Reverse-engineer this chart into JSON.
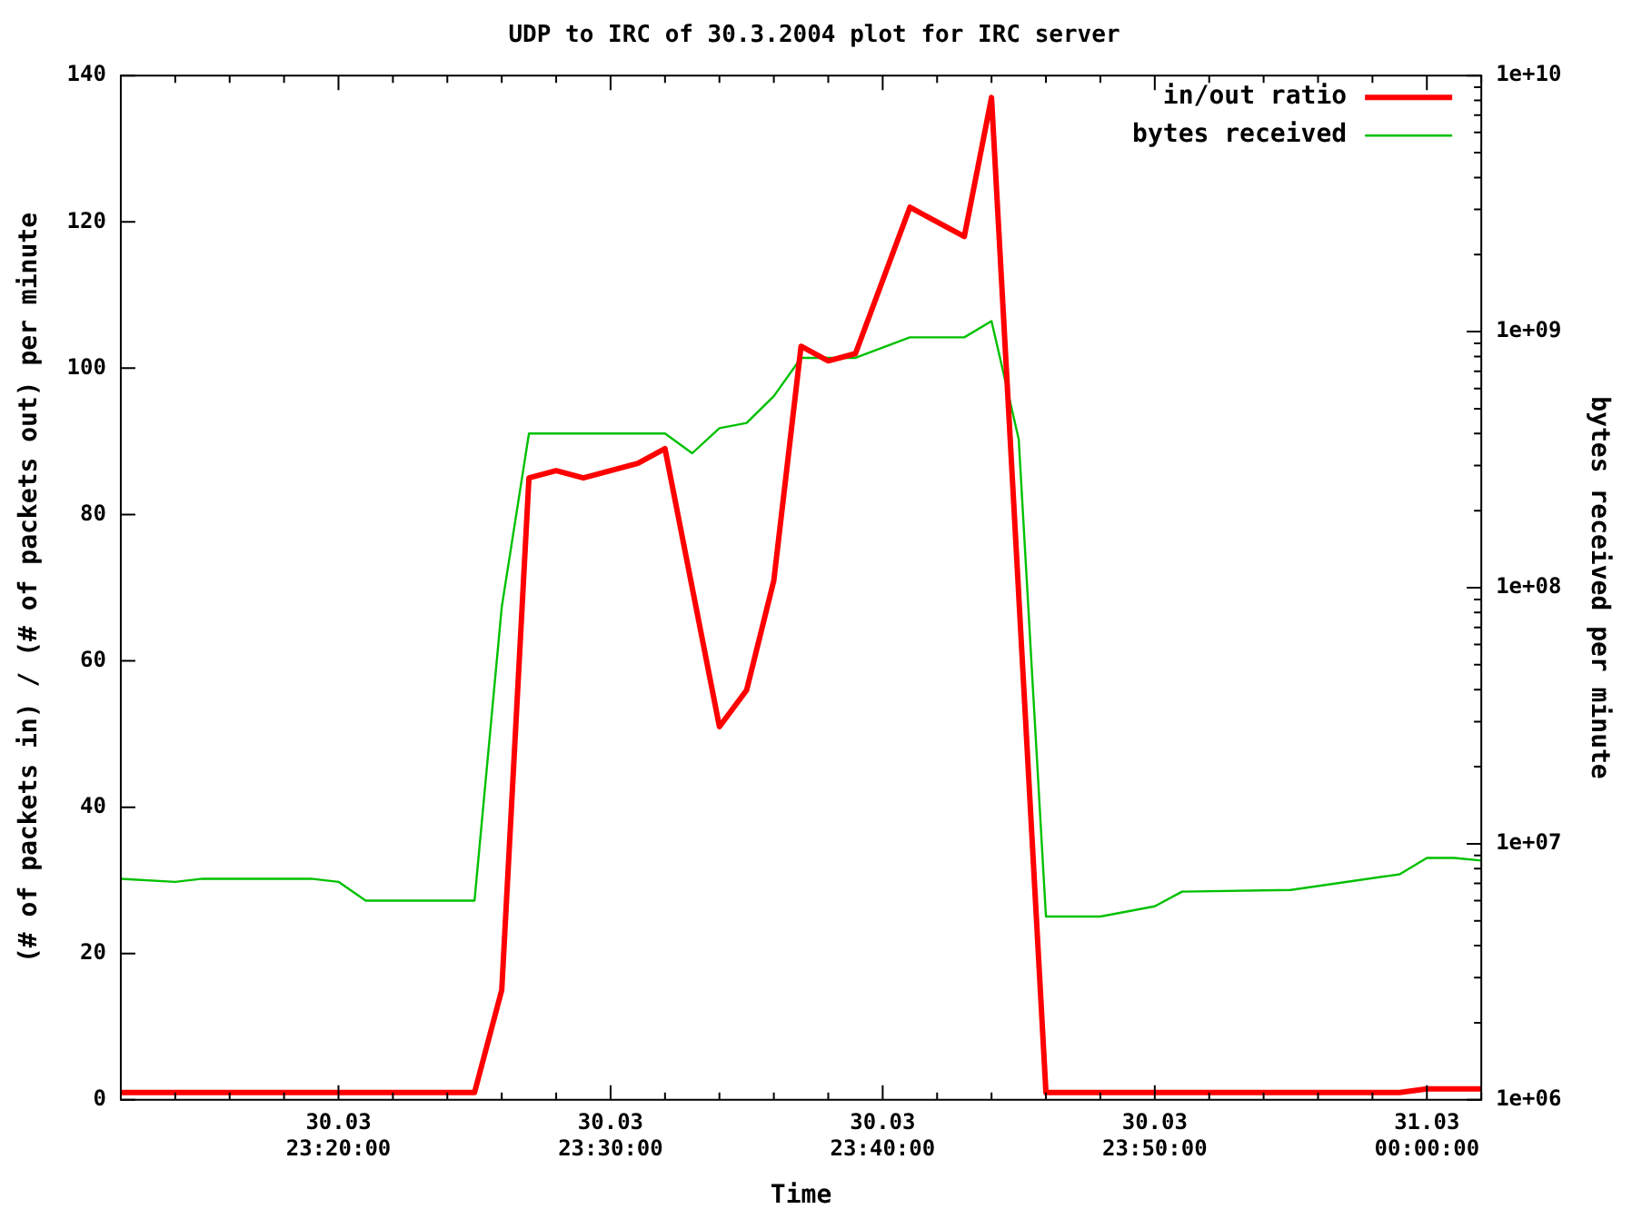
{
  "chart_data": {
    "type": "line",
    "title": "UDP to IRC of 30.3.2004 plot for IRC server",
    "xlabel": "Time",
    "ylabel": "(# of packets in) / (# of packets out) per minute",
    "y2label": "bytes received per minute",
    "log": "y2",
    "legend": "top right",
    "marker": "none",
    "line_style": "solid",
    "grid": false,
    "xlim": [
      "2004-03-30T23:12",
      "2004-03-31T00:02"
    ],
    "xticks": [
      {
        "value": "2004-03-30T23:14",
        "label": null
      },
      {
        "value": "2004-03-30T23:16",
        "label": null
      },
      {
        "value": "2004-03-30T23:18",
        "label": null
      },
      {
        "value": "2004-03-30T23:20",
        "label": "30.03\n23:20:00"
      },
      {
        "value": "2004-03-30T23:22",
        "label": null
      },
      {
        "value": "2004-03-30T23:24",
        "label": null
      },
      {
        "value": "2004-03-30T23:26",
        "label": null
      },
      {
        "value": "2004-03-30T23:28",
        "label": null
      },
      {
        "value": "2004-03-30T23:30",
        "label": "30.03\n23:30:00"
      },
      {
        "value": "2004-03-30T23:32",
        "label": null
      },
      {
        "value": "2004-03-30T23:34",
        "label": null
      },
      {
        "value": "2004-03-30T23:36",
        "label": null
      },
      {
        "value": "2004-03-30T23:38",
        "label": null
      },
      {
        "value": "2004-03-30T23:40",
        "label": "30.03\n23:40:00"
      },
      {
        "value": "2004-03-30T23:42",
        "label": null
      },
      {
        "value": "2004-03-30T23:44",
        "label": null
      },
      {
        "value": "2004-03-30T23:46",
        "label": null
      },
      {
        "value": "2004-03-30T23:48",
        "label": null
      },
      {
        "value": "2004-03-30T23:50",
        "label": "30.03\n23:50:00"
      },
      {
        "value": "2004-03-30T23:52",
        "label": null
      },
      {
        "value": "2004-03-30T23:54",
        "label": null
      },
      {
        "value": "2004-03-30T23:56",
        "label": null
      },
      {
        "value": "2004-03-30T23:58",
        "label": null
      },
      {
        "value": "2004-03-31T00:00",
        "label": "31.03\n00:00:00"
      },
      {
        "value": "2004-03-31T00:02",
        "label": null
      }
    ],
    "ylim": [
      0,
      140
    ],
    "yticks": [
      0,
      20,
      40,
      60,
      80,
      100,
      120,
      140
    ],
    "y2lim": [
      1000000,
      10000000000
    ],
    "y2ticks": [
      {
        "value": 1000000,
        "label": "1e+06"
      },
      {
        "value": 2000000,
        "label": null
      },
      {
        "value": 3000000,
        "label": null
      },
      {
        "value": 4000000,
        "label": null
      },
      {
        "value": 5000000,
        "label": null
      },
      {
        "value": 6000000,
        "label": null
      },
      {
        "value": 7000000,
        "label": null
      },
      {
        "value": 8000000,
        "label": null
      },
      {
        "value": 9000000,
        "label": null
      },
      {
        "value": 10000000,
        "label": "1e+07"
      },
      {
        "value": 20000000,
        "label": null
      },
      {
        "value": 30000000,
        "label": null
      },
      {
        "value": 40000000,
        "label": null
      },
      {
        "value": 50000000,
        "label": null
      },
      {
        "value": 60000000,
        "label": null
      },
      {
        "value": 70000000,
        "label": null
      },
      {
        "value": 80000000,
        "label": null
      },
      {
        "value": 90000000,
        "label": null
      },
      {
        "value": 100000000,
        "label": "1e+08"
      },
      {
        "value": 200000000,
        "label": null
      },
      {
        "value": 300000000,
        "label": null
      },
      {
        "value": 400000000,
        "label": null
      },
      {
        "value": 500000000,
        "label": null
      },
      {
        "value": 600000000,
        "label": null
      },
      {
        "value": 700000000,
        "label": null
      },
      {
        "value": 800000000,
        "label": null
      },
      {
        "value": 900000000,
        "label": null
      },
      {
        "value": 1000000000,
        "label": "1e+09"
      },
      {
        "value": 2000000000,
        "label": null
      },
      {
        "value": 3000000000,
        "label": null
      },
      {
        "value": 4000000000,
        "label": null
      },
      {
        "value": 5000000000,
        "label": null
      },
      {
        "value": 6000000000,
        "label": null
      },
      {
        "value": 7000000000,
        "label": null
      },
      {
        "value": 8000000000,
        "label": null
      },
      {
        "value": 9000000000,
        "label": null
      },
      {
        "value": 10000000000,
        "label": "1e+10"
      }
    ],
    "series": [
      {
        "name": "in/out ratio",
        "color": "#ff0000",
        "x": [
          "2004-03-30T23:12",
          "2004-03-30T23:25",
          "2004-03-30T23:26",
          "2004-03-30T23:27",
          "2004-03-30T23:28",
          "2004-03-30T23:29",
          "2004-03-30T23:30",
          "2004-03-30T23:31",
          "2004-03-30T23:32",
          "2004-03-30T23:34",
          "2004-03-30T23:35",
          "2004-03-30T23:36",
          "2004-03-30T23:37",
          "2004-03-30T23:38",
          "2004-03-30T23:39",
          "2004-03-30T23:41",
          "2004-03-30T23:43",
          "2004-03-30T23:44",
          "2004-03-30T23:46",
          "2004-03-30T23:59",
          "2004-03-31T00:00",
          "2004-03-31T00:02"
        ],
        "values": [
          1,
          1,
          15,
          85,
          86,
          85,
          86,
          87,
          89,
          51,
          56,
          71,
          103,
          101,
          102,
          122,
          118,
          137,
          1,
          1,
          1.5,
          1.5
        ]
      },
      {
        "name": "bytes received",
        "color": "#00c000",
        "axis": "y2",
        "x": [
          "2004-03-30T23:12",
          "2004-03-30T23:14",
          "2004-03-30T23:15",
          "2004-03-30T23:19",
          "2004-03-30T23:20",
          "2004-03-30T23:21",
          "2004-03-30T23:25",
          "2004-03-30T23:26",
          "2004-03-30T23:27",
          "2004-03-30T23:32",
          "2004-03-30T23:33",
          "2004-03-30T23:34",
          "2004-03-30T23:35",
          "2004-03-30T23:36",
          "2004-03-30T23:37",
          "2004-03-30T23:39",
          "2004-03-30T23:41",
          "2004-03-30T23:43",
          "2004-03-30T23:44",
          "2004-03-30T23:45",
          "2004-03-30T23:46",
          "2004-03-30T23:48",
          "2004-03-30T23:50",
          "2004-03-30T23:51",
          "2004-03-30T23:55",
          "2004-03-30T23:59",
          "2004-03-31T00:00",
          "2004-03-31T00:01",
          "2004-03-31T00:02"
        ],
        "values": [
          7300000,
          7100000,
          7300000,
          7300000,
          7100000,
          6000000,
          6000000,
          84000000,
          400000000,
          400000000,
          335000000,
          420000000,
          440000000,
          560000000,
          790000000,
          790000000,
          950000000,
          950000000,
          1100000000,
          380000000,
          5200000,
          5200000,
          5700000,
          6500000,
          6600000,
          7600000,
          8800000,
          8800000,
          8600000
        ]
      }
    ]
  }
}
